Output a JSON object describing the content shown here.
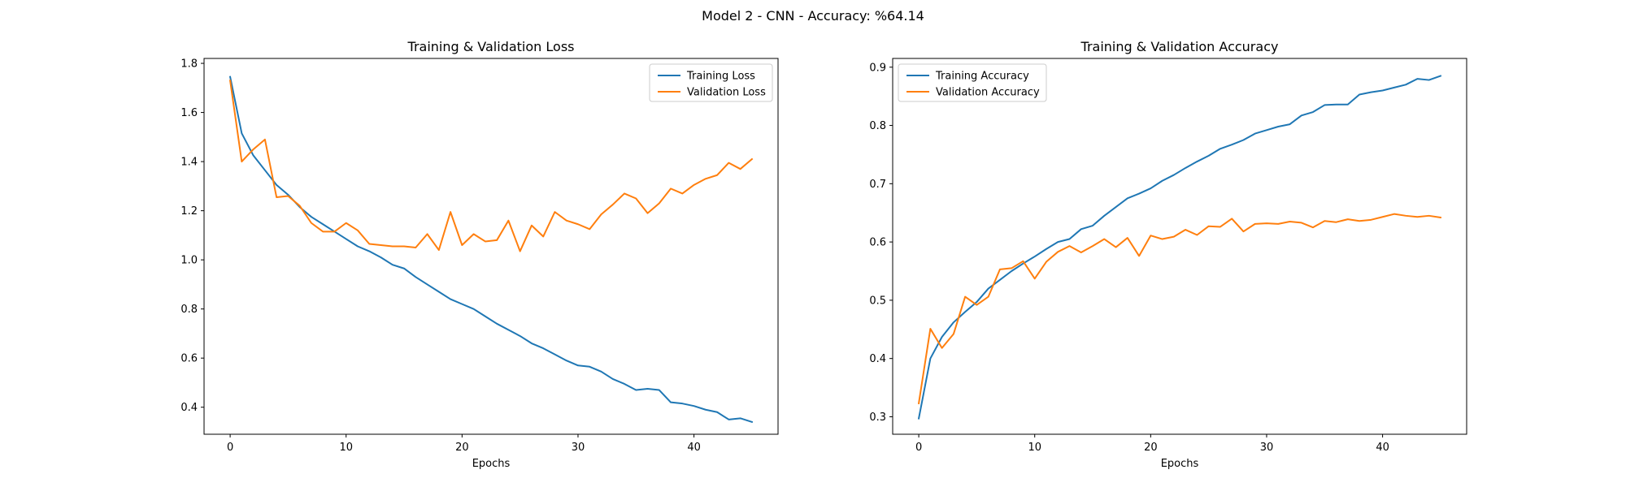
{
  "figure": {
    "title": "Model 2 - CNN - Accuracy: %64.14"
  },
  "chart_data": [
    {
      "type": "line",
      "title": "Training & Validation Loss",
      "xlabel": "Epochs",
      "ylabel": "",
      "xlim": [
        -2.25,
        47.25
      ],
      "ylim": [
        0.29,
        1.82
      ],
      "xticks": [
        0,
        10,
        20,
        30,
        40
      ],
      "yticks": [
        0.4,
        0.6,
        0.8,
        1.0,
        1.2,
        1.4,
        1.6,
        1.8
      ],
      "ytick_decimals": 1,
      "legend_position": "upper right",
      "grid": false,
      "x": [
        0,
        1,
        2,
        3,
        4,
        5,
        6,
        7,
        8,
        9,
        10,
        11,
        12,
        13,
        14,
        15,
        16,
        17,
        18,
        19,
        20,
        21,
        22,
        23,
        24,
        25,
        26,
        27,
        28,
        29,
        30,
        31,
        32,
        33,
        34,
        35,
        36,
        37,
        38,
        39,
        40,
        41,
        42,
        43,
        44,
        45
      ],
      "series": [
        {
          "name": "Training Loss",
          "color": "#1f77b4",
          "values": [
            1.745,
            1.515,
            1.425,
            1.365,
            1.305,
            1.265,
            1.215,
            1.175,
            1.145,
            1.115,
            1.085,
            1.055,
            1.035,
            1.01,
            0.98,
            0.965,
            0.93,
            0.9,
            0.87,
            0.84,
            0.82,
            0.8,
            0.77,
            0.74,
            0.715,
            0.69,
            0.66,
            0.64,
            0.615,
            0.59,
            0.57,
            0.565,
            0.545,
            0.515,
            0.495,
            0.47,
            0.475,
            0.47,
            0.42,
            0.415,
            0.405,
            0.39,
            0.38,
            0.35,
            0.355,
            0.34
          ]
        },
        {
          "name": "Validation Loss",
          "color": "#ff7f0e",
          "values": [
            1.73,
            1.4,
            1.45,
            1.49,
            1.255,
            1.26,
            1.22,
            1.15,
            1.115,
            1.115,
            1.15,
            1.12,
            1.065,
            1.06,
            1.055,
            1.055,
            1.05,
            1.105,
            1.04,
            1.195,
            1.06,
            1.105,
            1.075,
            1.08,
            1.16,
            1.035,
            1.14,
            1.095,
            1.195,
            1.16,
            1.145,
            1.125,
            1.185,
            1.225,
            1.27,
            1.25,
            1.19,
            1.23,
            1.29,
            1.27,
            1.305,
            1.33,
            1.345,
            1.395,
            1.37,
            1.41
          ]
        }
      ]
    },
    {
      "type": "line",
      "title": "Training & Validation Accuracy",
      "xlabel": "Epochs",
      "ylabel": "",
      "xlim": [
        -2.25,
        47.25
      ],
      "ylim": [
        0.27,
        0.915
      ],
      "xticks": [
        0,
        10,
        20,
        30,
        40
      ],
      "yticks": [
        0.3,
        0.4,
        0.5,
        0.6,
        0.7,
        0.8,
        0.9
      ],
      "ytick_decimals": 1,
      "legend_position": "upper left",
      "grid": false,
      "x": [
        0,
        1,
        2,
        3,
        4,
        5,
        6,
        7,
        8,
        9,
        10,
        11,
        12,
        13,
        14,
        15,
        16,
        17,
        18,
        19,
        20,
        21,
        22,
        23,
        24,
        25,
        26,
        27,
        28,
        29,
        30,
        31,
        32,
        33,
        34,
        35,
        36,
        37,
        38,
        39,
        40,
        41,
        42,
        43,
        44,
        45
      ],
      "series": [
        {
          "name": "Training Accuracy",
          "color": "#1f77b4",
          "values": [
            0.297,
            0.4,
            0.437,
            0.462,
            0.48,
            0.497,
            0.52,
            0.535,
            0.55,
            0.563,
            0.575,
            0.588,
            0.6,
            0.605,
            0.622,
            0.628,
            0.645,
            0.66,
            0.675,
            0.683,
            0.692,
            0.705,
            0.715,
            0.727,
            0.738,
            0.748,
            0.76,
            0.767,
            0.775,
            0.786,
            0.792,
            0.798,
            0.802,
            0.817,
            0.823,
            0.835,
            0.836,
            0.836,
            0.853,
            0.857,
            0.86,
            0.865,
            0.87,
            0.88,
            0.878,
            0.885
          ]
        },
        {
          "name": "Validation Accuracy",
          "color": "#ff7f0e",
          "values": [
            0.323,
            0.451,
            0.418,
            0.442,
            0.506,
            0.492,
            0.506,
            0.553,
            0.555,
            0.567,
            0.537,
            0.566,
            0.583,
            0.593,
            0.582,
            0.593,
            0.605,
            0.591,
            0.607,
            0.576,
            0.611,
            0.605,
            0.609,
            0.621,
            0.612,
            0.627,
            0.626,
            0.64,
            0.618,
            0.631,
            0.632,
            0.631,
            0.635,
            0.633,
            0.625,
            0.636,
            0.634,
            0.639,
            0.636,
            0.638,
            0.643,
            0.648,
            0.645,
            0.643,
            0.645,
            0.642
          ]
        }
      ]
    }
  ]
}
